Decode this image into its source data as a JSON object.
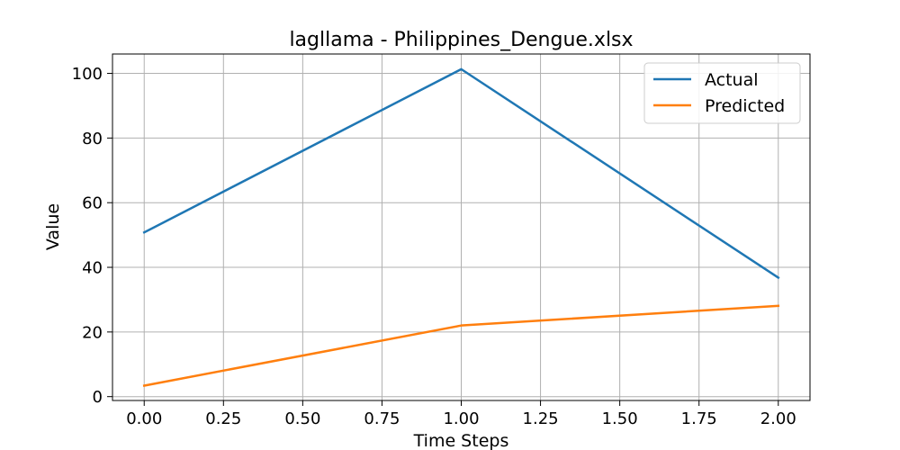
{
  "chart_data": {
    "type": "line",
    "title": "lagllama - Philippines_Dengue.xlsx",
    "xlabel": "Time Steps",
    "ylabel": "Value",
    "x": [
      0,
      1,
      2
    ],
    "xlim": [
      -0.1,
      2.1
    ],
    "ylim": [
      -1.2,
      106
    ],
    "xticks": [
      "0.00",
      "0.25",
      "0.50",
      "0.75",
      "1.00",
      "1.25",
      "1.50",
      "1.75",
      "2.00"
    ],
    "xtick_values": [
      0,
      0.25,
      0.5,
      0.75,
      1.0,
      1.25,
      1.5,
      1.75,
      2.0
    ],
    "yticks": [
      "0",
      "20",
      "40",
      "60",
      "80",
      "100"
    ],
    "ytick_values": [
      0,
      20,
      40,
      60,
      80,
      100
    ],
    "grid": true,
    "legend_position": "top-right",
    "series": [
      {
        "name": "Actual",
        "values": [
          50.8,
          101.3,
          36.8
        ],
        "color": "#1f77b4"
      },
      {
        "name": "Predicted",
        "values": [
          3.4,
          22.0,
          28.1
        ],
        "color": "#ff7f0e"
      }
    ]
  }
}
